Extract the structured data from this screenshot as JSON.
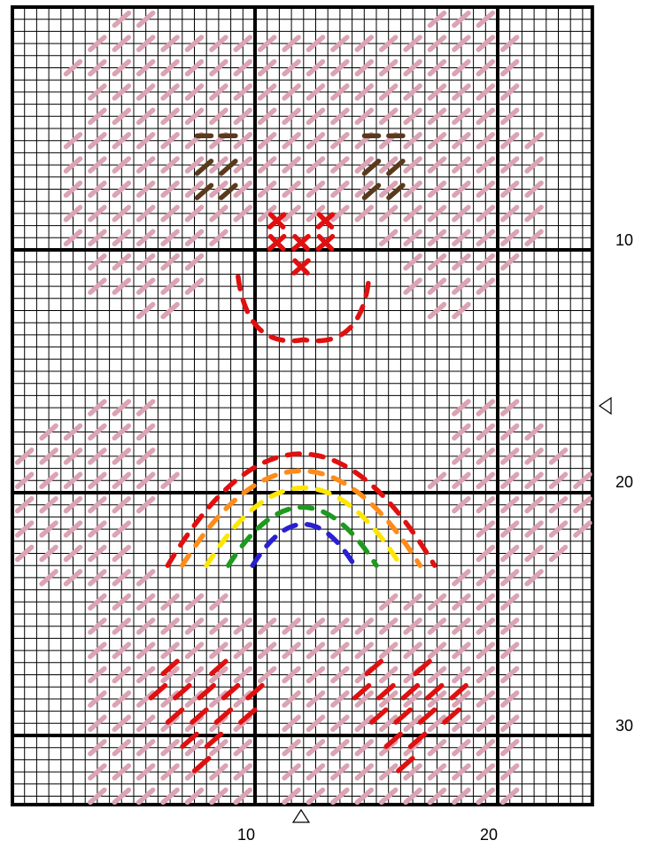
{
  "right_labels": [
    "10",
    "20",
    "30"
  ],
  "bottom_labels": [
    "10",
    "20"
  ]
}
